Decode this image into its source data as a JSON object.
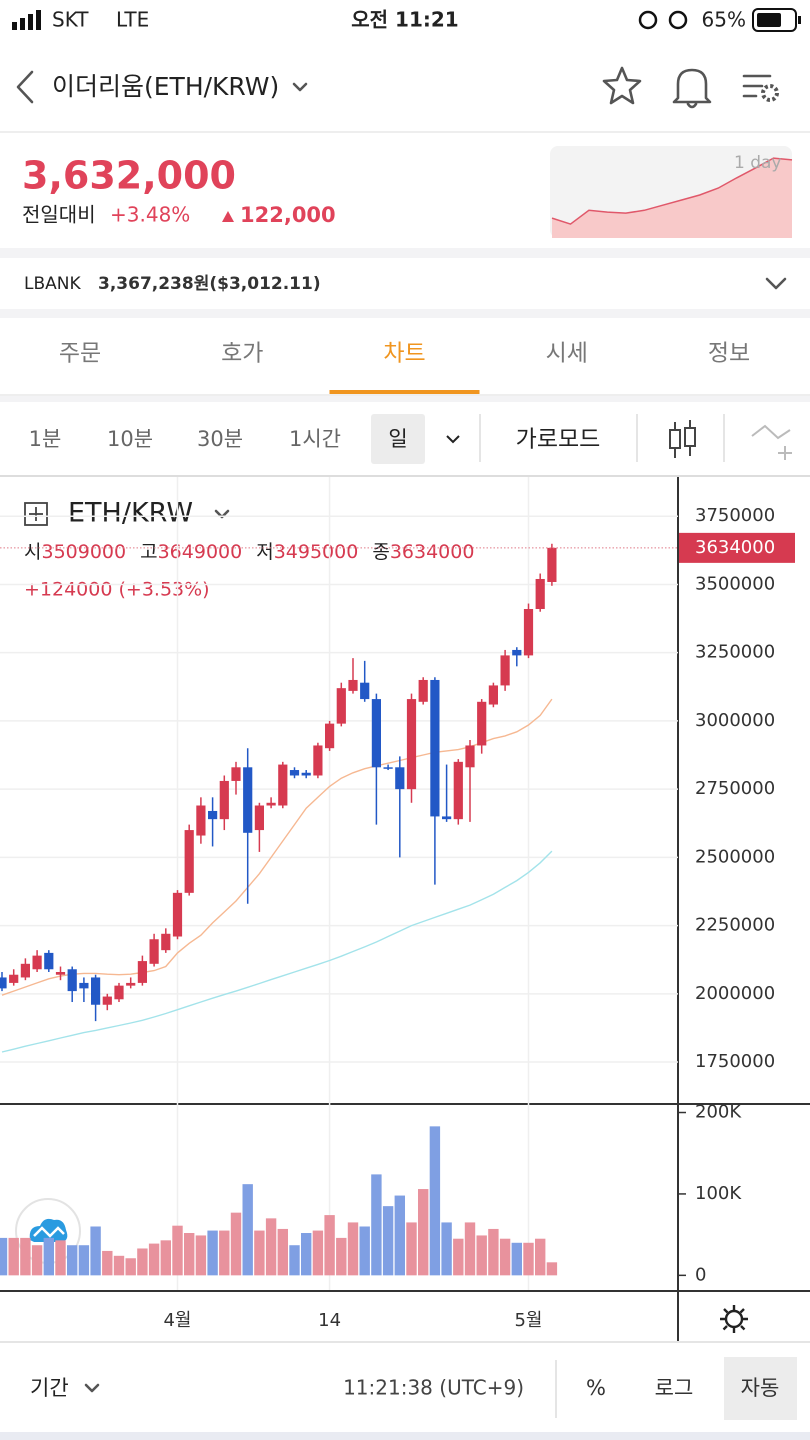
{
  "status_bar": {
    "carrier": "SKT",
    "network": "LTE",
    "time": "오전 11:21",
    "battery": "65%"
  },
  "header": {
    "title": "이더리움(ETH/KRW)"
  },
  "price": {
    "current": "3,632,000",
    "change_label": "전일대비",
    "change_pct": "+3.48%",
    "change_amount": "122,000"
  },
  "exchange": {
    "name": "LBANK",
    "price": "3,367,238원($3,012.11)"
  },
  "tabs": [
    "주문",
    "호가",
    "차트",
    "시세",
    "정보"
  ],
  "active_tab": 2,
  "intervals": [
    "1분",
    "10분",
    "30분",
    "1시간",
    "일"
  ],
  "active_interval": 4,
  "landscape": "가로모드",
  "chart_data": [
    {
      "type": "candlestick",
      "title": "ETH/KRW",
      "ohlc_labels": [
        "시",
        "고",
        "저",
        "종"
      ],
      "change": "+124000 (+3.53%)",
      "categories": [
        null,
        null,
        null,
        null,
        null,
        null,
        null,
        null,
        null,
        null,
        null,
        null,
        null,
        null,
        null,
        "4월",
        null,
        null,
        null,
        null,
        null,
        null,
        null,
        null,
        null,
        null,
        null,
        null,
        "14",
        null,
        null,
        null,
        null,
        null,
        null,
        null,
        null,
        null,
        null,
        null,
        null,
        null,
        null,
        null,
        null,
        "5월",
        null,
        null
      ],
      "open": [
        2060000,
        2040000,
        2060000,
        2090000,
        2150000,
        2070000,
        2090000,
        2040000,
        2060000,
        1960000,
        1980000,
        2030000,
        2040000,
        2110000,
        2160000,
        2210000,
        2370000,
        2580000,
        2670000,
        2640000,
        2780000,
        2830000,
        2600000,
        2690000,
        2690000,
        2820000,
        2810000,
        2800000,
        2900000,
        2990000,
        3110000,
        3140000,
        3080000,
        2830000,
        2830000,
        2750000,
        3070000,
        3150000,
        2650000,
        2640000,
        2830000,
        2910000,
        3060000,
        3130000,
        3260000,
        3240000,
        3410000,
        3509000
      ],
      "high": [
        2080000,
        2090000,
        2130000,
        2160000,
        2160000,
        2100000,
        2100000,
        2060000,
        2070000,
        2000000,
        2040000,
        2060000,
        2140000,
        2220000,
        2240000,
        2380000,
        2620000,
        2720000,
        2720000,
        2800000,
        2850000,
        2900000,
        2700000,
        2720000,
        2850000,
        2830000,
        2820000,
        2920000,
        3000000,
        3140000,
        3230000,
        3220000,
        3100000,
        2840000,
        2870000,
        3100000,
        3160000,
        3160000,
        2840000,
        2860000,
        2930000,
        3080000,
        3140000,
        3260000,
        3270000,
        3430000,
        3540000,
        3649000
      ],
      "low": [
        2010000,
        2030000,
        2050000,
        2080000,
        2080000,
        2050000,
        1970000,
        1970000,
        1900000,
        1940000,
        1970000,
        2020000,
        2030000,
        2100000,
        2150000,
        2200000,
        2360000,
        2550000,
        2540000,
        2600000,
        2730000,
        2330000,
        2520000,
        2680000,
        2680000,
        2790000,
        2790000,
        2790000,
        2890000,
        2980000,
        3100000,
        3070000,
        2620000,
        2820000,
        2500000,
        2700000,
        3060000,
        2400000,
        2630000,
        2620000,
        2630000,
        2880000,
        3050000,
        3110000,
        3200000,
        3230000,
        3400000,
        3495000
      ],
      "close": [
        2020000,
        2070000,
        2110000,
        2140000,
        2090000,
        2080000,
        2010000,
        2020000,
        1960000,
        1990000,
        2030000,
        2040000,
        2120000,
        2200000,
        2220000,
        2370000,
        2600000,
        2690000,
        2640000,
        2780000,
        2830000,
        2590000,
        2690000,
        2700000,
        2840000,
        2800000,
        2800000,
        2910000,
        2990000,
        3120000,
        3150000,
        3080000,
        2830000,
        2830000,
        2750000,
        3080000,
        3150000,
        2650000,
        2640000,
        2850000,
        2910000,
        3070000,
        3130000,
        3240000,
        3240000,
        3410000,
        3520000,
        3634000
      ],
      "overlays": [
        {
          "color": "#f6b892",
          "values": [
            1995000,
            2010000,
            2025000,
            2040000,
            2055000,
            2065000,
            2072000,
            2075000,
            2075000,
            2072000,
            2070000,
            2072000,
            2078000,
            2085000,
            2100000,
            2150000,
            2185000,
            2215000,
            2260000,
            2300000,
            2340000,
            2390000,
            2440000,
            2500000,
            2560000,
            2620000,
            2680000,
            2720000,
            2760000,
            2790000,
            2810000,
            2825000,
            2835000,
            2845000,
            2855000,
            2865000,
            2875000,
            2885000,
            2890000,
            2895000,
            2905000,
            2920000,
            2935000,
            2945000,
            2960000,
            2985000,
            3020000,
            3080000
          ]
        },
        {
          "color": "#a3e3ea",
          "values": [
            1787000,
            1797000,
            1808000,
            1818000,
            1828000,
            1838000,
            1848000,
            1858000,
            1866000,
            1875000,
            1884000,
            1893000,
            1903000,
            1915000,
            1928000,
            1942000,
            1956000,
            1970000,
            1984000,
            1997000,
            2010000,
            2024000,
            2038000,
            2052000,
            2066000,
            2080000,
            2094000,
            2108000,
            2122000,
            2138000,
            2155000,
            2172000,
            2190000,
            2210000,
            2230000,
            2250000,
            2265000,
            2280000,
            2295000,
            2310000,
            2325000,
            2345000,
            2365000,
            2390000,
            2415000,
            2445000,
            2480000,
            2523000
          ]
        }
      ],
      "up_color": "#d63a50",
      "down_color": "#2258c6",
      "ylim": [
        1600000,
        3890000
      ],
      "yticks": [
        1750000,
        2000000,
        2250000,
        2500000,
        2750000,
        3000000,
        3250000,
        3500000,
        3750000
      ],
      "grid": true
    },
    {
      "type": "bar",
      "values": [
        46000,
        46000,
        46000,
        37000,
        46000,
        43000,
        37000,
        37000,
        60000,
        30000,
        24000,
        21000,
        33000,
        39000,
        43000,
        61000,
        52000,
        49000,
        55000,
        55000,
        77000,
        112000,
        55000,
        70000,
        57000,
        37000,
        52000,
        55000,
        74000,
        46000,
        65000,
        60000,
        124000,
        85000,
        98000,
        65000,
        106000,
        183000,
        65000,
        45000,
        65000,
        49000,
        57000,
        45000,
        40000,
        40000,
        45000,
        16000
      ],
      "up_color": "#e8929d",
      "down_color": "#7f9fe3",
      "ylim": [
        -18000,
        208000
      ],
      "yticks": [
        {
          "value": 200000,
          "label": "200K"
        },
        {
          "value": 100000,
          "label": "100K"
        },
        0
      ]
    },
    {
      "type": "area",
      "label": "1 day",
      "values": [
        3510000,
        3497000,
        3527000,
        3523000,
        3521000,
        3527000,
        3538000,
        3549000,
        3560000,
        3575000,
        3597000,
        3618000,
        3640000,
        3636000
      ],
      "ylim": [
        3467000,
        3664000
      ],
      "color": "#e0586a",
      "fill": "#f8c9c9"
    }
  ],
  "footer": {
    "period": "기간",
    "time": "11:21:38 (UTC+9)",
    "buttons": [
      "%",
      "로그",
      "자동"
    ],
    "active_button": 2
  }
}
